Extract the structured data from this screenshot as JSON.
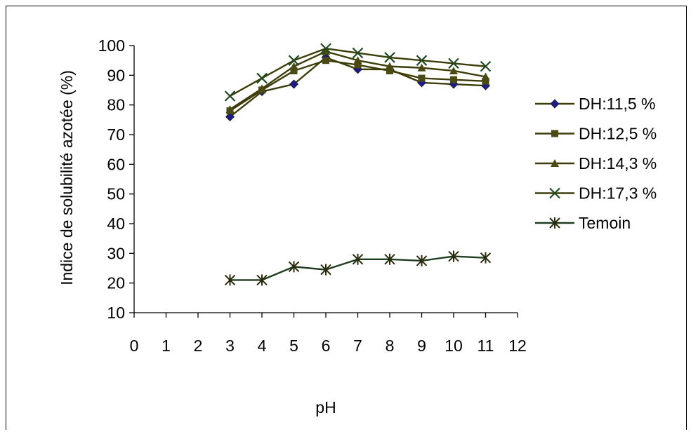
{
  "chart_data": {
    "type": "line",
    "xlabel": "pH",
    "ylabel": "Indice de solubilité azotée (%)",
    "xlim": [
      0,
      12
    ],
    "ylim": [
      10,
      100
    ],
    "xticks": [
      0,
      1,
      2,
      3,
      4,
      5,
      6,
      7,
      8,
      9,
      10,
      11,
      12
    ],
    "yticks": [
      10,
      20,
      30,
      40,
      50,
      60,
      70,
      80,
      90,
      100
    ],
    "grid": false,
    "legend_position": "right",
    "x": [
      3,
      4,
      5,
      6,
      7,
      8,
      9,
      10,
      11
    ],
    "series": [
      {
        "name": "DH:11,5 %",
        "marker": "diamond",
        "line_color": "#3d3d0a",
        "marker_color": "#1b1b8a",
        "values": [
          76,
          84.5,
          87,
          96,
          92,
          92,
          87.5,
          87,
          86.5
        ]
      },
      {
        "name": "DH:12,5 %",
        "marker": "square",
        "line_color": "#3d3d0a",
        "marker_color": "#4a4a12",
        "values": [
          78,
          85,
          91.5,
          95,
          93.5,
          91.5,
          89,
          88.5,
          88
        ]
      },
      {
        "name": "DH:14,3 %",
        "marker": "triangle",
        "line_color": "#3d3d0a",
        "marker_color": "#4a4a12",
        "values": [
          78.5,
          85.5,
          93,
          98,
          95,
          93,
          92.5,
          91.5,
          89.5
        ]
      },
      {
        "name": "DH:17,3 %",
        "marker": "x",
        "line_color": "#3d3d0a",
        "marker_color": "#1f4a1f",
        "values": [
          83,
          89,
          95,
          99,
          97.5,
          96,
          95,
          94,
          93
        ]
      },
      {
        "name": "Temoin",
        "marker": "star",
        "line_color": "#1f3d1f",
        "marker_color": "#2a2a0a",
        "values": [
          21,
          21,
          25.5,
          24.5,
          28,
          28,
          27.5,
          29,
          28.5
        ]
      }
    ]
  }
}
